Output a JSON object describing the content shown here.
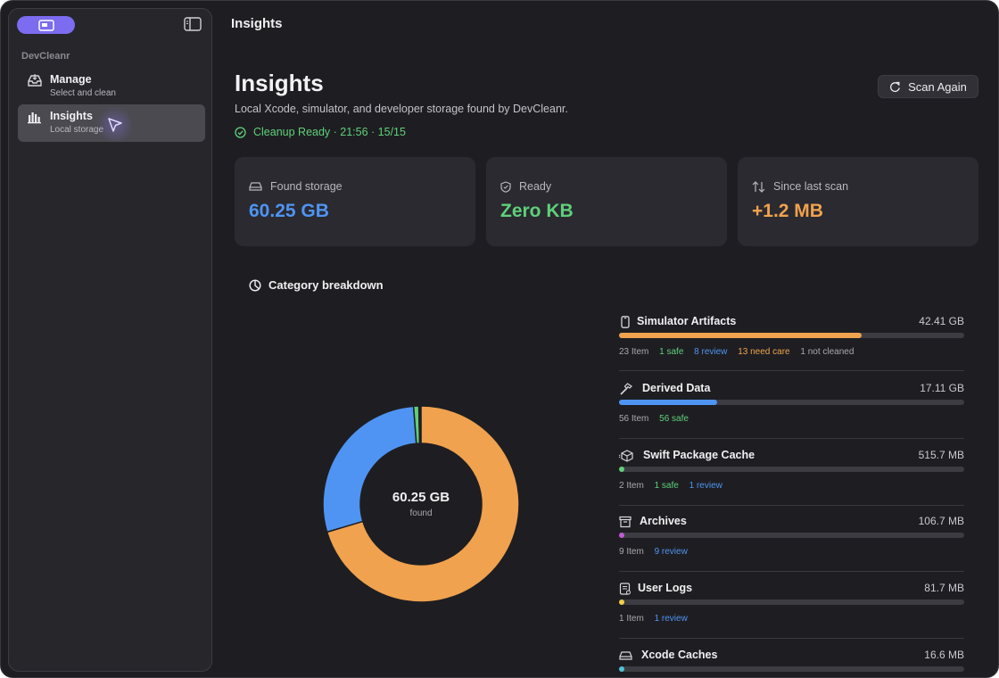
{
  "window": {
    "title": "Insights"
  },
  "sidebar": {
    "section": "DevCleanr",
    "items": [
      {
        "title": "Manage",
        "subtitle": "Select and clean"
      },
      {
        "title": "Insights",
        "subtitle": "Local storage"
      }
    ]
  },
  "page": {
    "title": "Insights",
    "subtitle": "Local Xcode, simulator, and developer storage found by DevCleanr.",
    "status": "Cleanup Ready · 21:56 · 15/15",
    "scan_button": "Scan Again"
  },
  "cards": [
    {
      "label": "Found storage",
      "value": "60.25 GB",
      "color": "#4f94f2",
      "icon": "drive-icon"
    },
    {
      "label": "Ready",
      "value": "Zero KB",
      "color": "#5fd07a",
      "icon": "shield-check-icon"
    },
    {
      "label": "Since last scan",
      "value": "+1.2 MB",
      "color": "#f0a24e",
      "icon": "arrows-updown-icon"
    }
  ],
  "breakdown": {
    "title": "Category breakdown",
    "total": "60.25 GB",
    "total_label": "found",
    "categories": [
      {
        "name": "Simulator Artifacts",
        "size": "42.41 GB",
        "fraction": 0.704,
        "color": "#f0a24e",
        "icon": "phone-icon",
        "meta": {
          "items": "23 Item",
          "safe": "1 safe",
          "review": "8 review",
          "care": "13 need care",
          "not_cleaned": "1 not cleaned"
        }
      },
      {
        "name": "Derived Data",
        "size": "17.11 GB",
        "fraction": 0.284,
        "color": "#4f94f2",
        "icon": "hammer-icon",
        "meta": {
          "items": "56 Item",
          "safe": "56 safe"
        }
      },
      {
        "name": "Swift Package Cache",
        "size": "515.7 MB",
        "fraction": 0.0086,
        "color": "#5fd07a",
        "icon": "package-icon",
        "meta": {
          "items": "2 Item",
          "safe": "1 safe",
          "review": "1 review"
        }
      },
      {
        "name": "Archives",
        "size": "106.7 MB",
        "fraction": 0.0018,
        "color": "#c05ad6",
        "icon": "archive-box-icon",
        "meta": {
          "items": "9 Item",
          "review": "9 review"
        }
      },
      {
        "name": "User Logs",
        "size": "81.7 MB",
        "fraction": 0.0014,
        "color": "#f2d04a",
        "icon": "log-icon",
        "meta": {
          "items": "1 Item",
          "review": "1 review"
        }
      },
      {
        "name": "Xcode Caches",
        "size": "16.6 MB",
        "fraction": 0.0003,
        "color": "#4fc2d8",
        "icon": "drive-icon"
      }
    ]
  }
}
